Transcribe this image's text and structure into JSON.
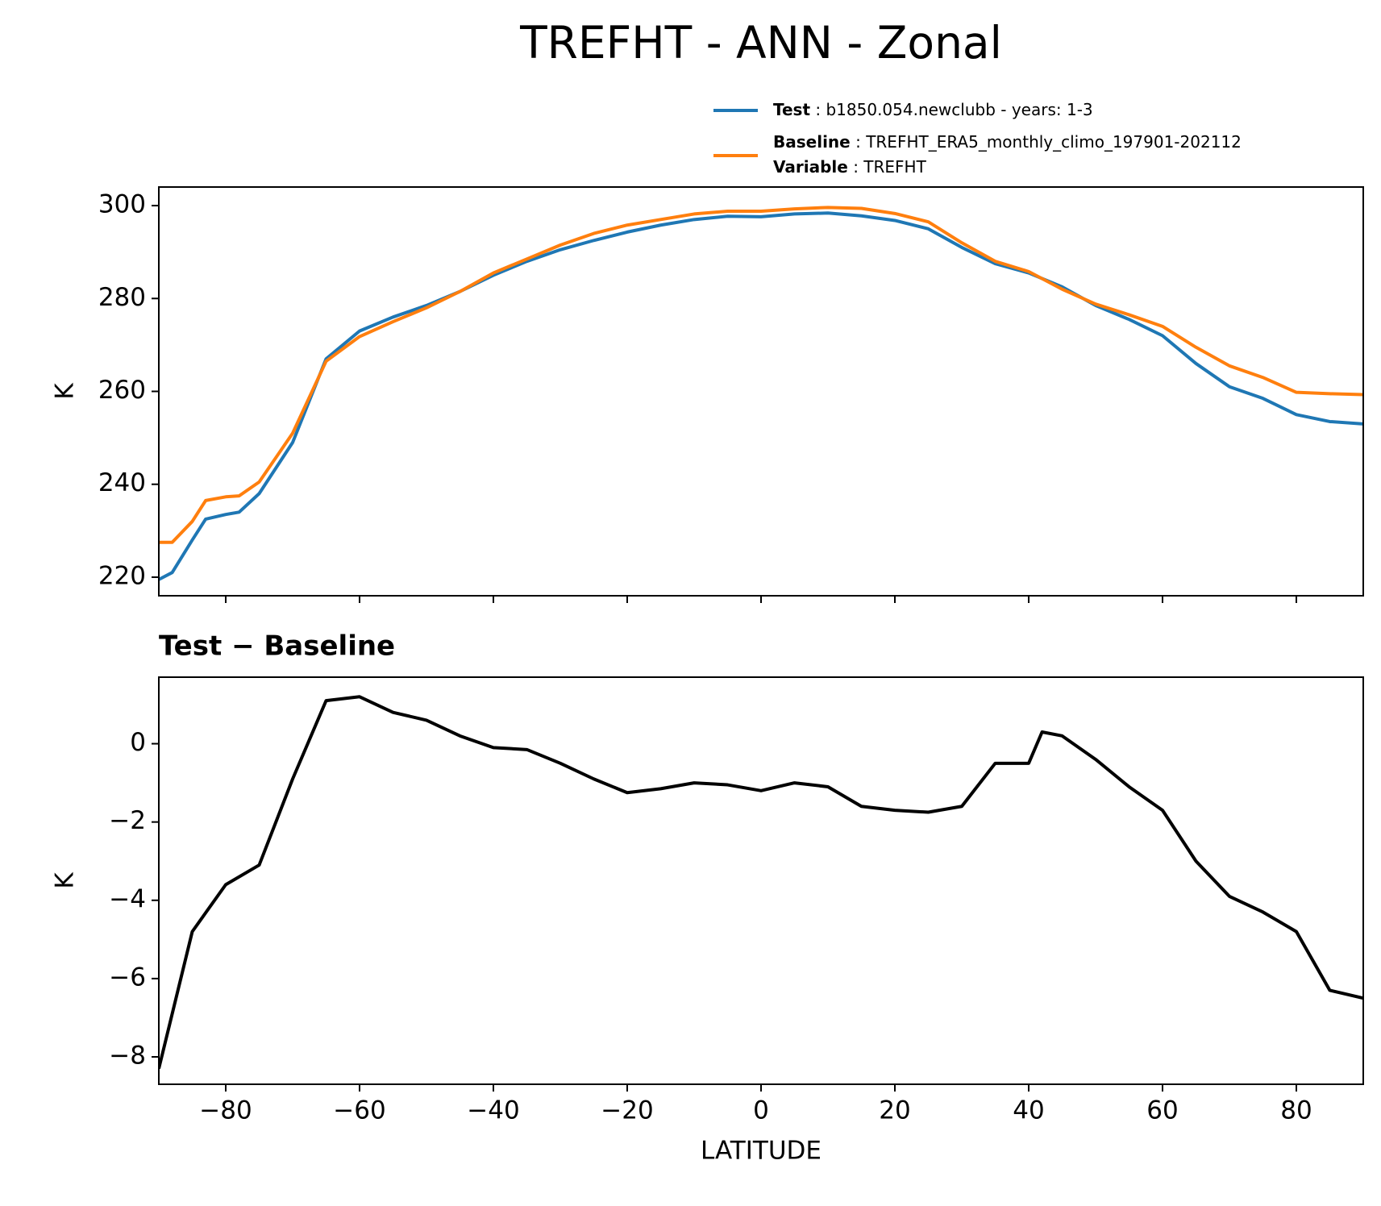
{
  "chart_data": [
    {
      "type": "line",
      "title": "TREFHT - ANN - Zonal",
      "ylabel": "K",
      "x": [
        -90,
        -88,
        -85,
        -83,
        -80,
        -78,
        -75,
        -70,
        -65,
        -60,
        -55,
        -50,
        -45,
        -40,
        -35,
        -30,
        -25,
        -20,
        -15,
        -10,
        -5,
        0,
        5,
        10,
        15,
        20,
        25,
        30,
        35,
        40,
        45,
        50,
        55,
        60,
        65,
        70,
        75,
        80,
        85,
        90
      ],
      "series": [
        {
          "name": "Test",
          "description": " : b1850.054.newclubb - years: 1-3",
          "color": "#1f77b4",
          "values": [
            219.5,
            221,
            228,
            232.5,
            233.5,
            234,
            238,
            249,
            267,
            273,
            276,
            278.5,
            281.5,
            285,
            288,
            290.5,
            292.5,
            294.3,
            295.8,
            297,
            297.7,
            297.6,
            298.2,
            298.4,
            297.8,
            296.8,
            295,
            291,
            287.5,
            285.5,
            282.5,
            278.5,
            275.5,
            272,
            266,
            261,
            258.5,
            255,
            253.5,
            253
          ]
        },
        {
          "name": "Baseline",
          "description": " : TREFHT_ERA5_monthly_climo_197901-202112",
          "color": "#ff7f0e",
          "values": [
            227.5,
            227.5,
            232,
            236.5,
            237.3,
            237.5,
            240.5,
            251,
            266.5,
            271.8,
            275,
            278,
            281.5,
            285.5,
            288.5,
            291.5,
            294,
            295.8,
            297,
            298.2,
            298.8,
            298.8,
            299.3,
            299.6,
            299.4,
            298.3,
            296.5,
            292,
            288,
            285.8,
            282,
            278.8,
            276.5,
            274,
            269.5,
            265.5,
            263,
            259.8,
            259.5,
            259.3
          ]
        }
      ],
      "legend_extra": {
        "name": "Variable",
        "description": " : TREFHT"
      },
      "xlim": [
        -90,
        90
      ],
      "xticks": [
        -80,
        -60,
        -40,
        -20,
        0,
        20,
        40,
        60,
        80
      ],
      "show_xtick_labels": false,
      "ylim": [
        216,
        304
      ],
      "yticks": [
        220,
        240,
        260,
        280,
        300
      ],
      "grid": false
    },
    {
      "type": "line",
      "title": "Test − Baseline",
      "ylabel": "K",
      "xlabel": "LATITUDE",
      "x": [
        -90,
        -85,
        -80,
        -75,
        -70,
        -65,
        -60,
        -55,
        -50,
        -45,
        -40,
        -35,
        -30,
        -25,
        -20,
        -15,
        -10,
        -5,
        0,
        5,
        10,
        15,
        20,
        25,
        30,
        35,
        40,
        42,
        45,
        50,
        55,
        60,
        65,
        70,
        75,
        80,
        85,
        90
      ],
      "series": [
        {
          "name": "Test − Baseline",
          "color": "#000000",
          "values": [
            -8.3,
            -4.8,
            -3.6,
            -3.1,
            -0.9,
            1.1,
            1.2,
            0.8,
            0.6,
            0.2,
            -0.1,
            -0.15,
            -0.5,
            -0.9,
            -1.25,
            -1.15,
            -1.0,
            -1.05,
            -1.2,
            -1.0,
            -1.1,
            -1.6,
            -1.7,
            -1.75,
            -1.6,
            -0.5,
            -0.5,
            0.3,
            0.2,
            -0.4,
            -1.1,
            -1.7,
            -3.0,
            -3.9,
            -4.3,
            -4.8,
            -6.3,
            -6.5
          ]
        }
      ],
      "xlim": [
        -90,
        90
      ],
      "xticks": [
        {
          "value": -80,
          "label": "−80"
        },
        {
          "value": -60,
          "label": "−60"
        },
        {
          "value": -40,
          "label": "−40"
        },
        {
          "value": -20,
          "label": "−20"
        },
        0,
        20,
        40,
        60,
        80
      ],
      "show_xtick_labels": true,
      "ylim": [
        -8.7,
        1.7
      ],
      "yticks": [
        {
          "value": -8,
          "label": "−8"
        },
        {
          "value": -6,
          "label": "−6"
        },
        {
          "value": -4,
          "label": "−4"
        },
        {
          "value": -2,
          "label": "−2"
        },
        0
      ],
      "grid": false
    }
  ]
}
